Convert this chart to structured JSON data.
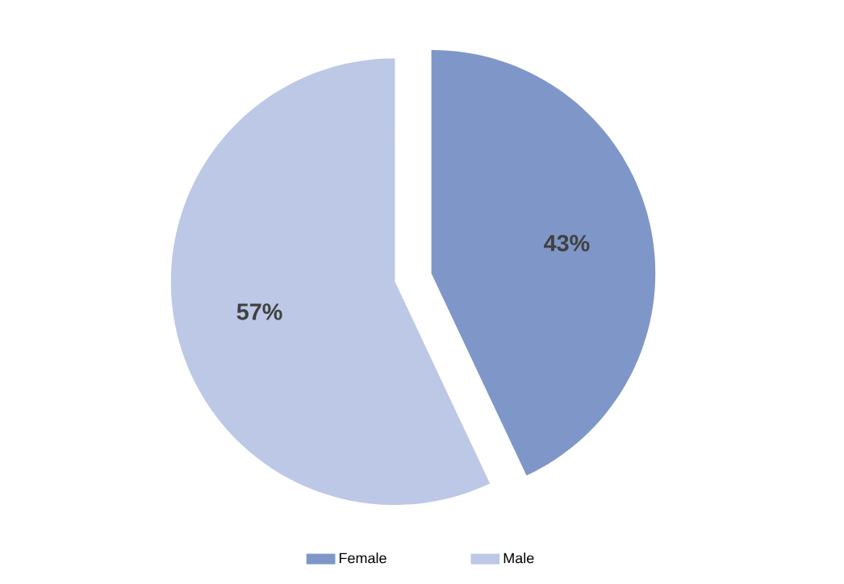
{
  "chart_data": {
    "type": "pie",
    "categories": [
      "Female",
      "Male"
    ],
    "values": [
      43,
      57
    ],
    "colors": [
      "#7f97c8",
      "#bcc8e6"
    ],
    "value_labels": [
      "43%",
      "57%"
    ],
    "legend": "bottom"
  }
}
